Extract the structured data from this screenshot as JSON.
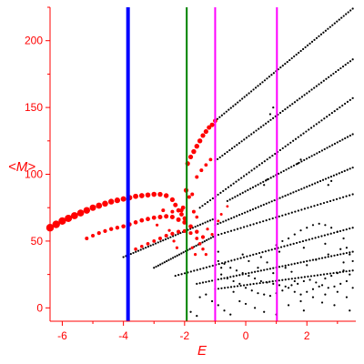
{
  "chart_data": {
    "type": "scatter",
    "title": "",
    "xlabel": "E",
    "ylabel": "<M>",
    "xlim": [
      -6.4,
      3.6
    ],
    "ylim": [
      -10,
      225
    ],
    "xticks": [
      "-6",
      "-4",
      "-2",
      "0",
      "2"
    ],
    "xtick_values": [
      -6,
      -4,
      -2,
      0,
      2
    ],
    "yticks": [
      "0",
      "50",
      "100",
      "150",
      "200"
    ],
    "ytick_values": [
      0,
      50,
      100,
      150,
      200
    ],
    "grid": false,
    "vertical_lines": [
      {
        "x": -3.85,
        "color": "#0000ff"
      },
      {
        "x": -1.93,
        "color": "#008000"
      },
      {
        "x": -1.0,
        "color": "#ff00ff"
      },
      {
        "x": 1.02,
        "color": "#ff00ff"
      }
    ],
    "series": [
      {
        "color": "#ff0000",
        "points": [
          [
            -6.4,
            60,
            4.2
          ],
          [
            -6.2,
            62.5,
            4.2
          ],
          [
            -6.0,
            65,
            4.1
          ],
          [
            -5.8,
            67,
            4.0
          ],
          [
            -5.6,
            69,
            3.9
          ],
          [
            -5.4,
            71,
            3.8
          ],
          [
            -5.2,
            73,
            3.7
          ],
          [
            -5.0,
            75,
            3.5
          ],
          [
            -4.8,
            76.5,
            3.4
          ],
          [
            -4.6,
            78,
            3.3
          ],
          [
            -4.4,
            79.5,
            3.2
          ],
          [
            -4.2,
            80.5,
            3.1
          ],
          [
            -4.0,
            81.5,
            3.0
          ],
          [
            -3.8,
            82.5,
            3.0
          ],
          [
            -3.6,
            83.5,
            2.9
          ],
          [
            -3.4,
            84,
            2.9
          ],
          [
            -3.2,
            84.5,
            2.8
          ],
          [
            -3.0,
            85,
            2.8
          ],
          [
            -2.8,
            85,
            2.7
          ],
          [
            -2.6,
            84,
            2.7
          ],
          [
            -2.4,
            81,
            2.6
          ],
          [
            -2.3,
            77,
            2.5
          ],
          [
            -2.2,
            73,
            2.4
          ],
          [
            -2.1,
            70,
            2.4
          ],
          [
            -2.0,
            67,
            2.3
          ],
          [
            -5.2,
            52,
            2.0
          ],
          [
            -5.0,
            54,
            2.0
          ],
          [
            -4.8,
            56,
            2.1
          ],
          [
            -4.6,
            57.5,
            2.1
          ],
          [
            -4.4,
            59,
            2.2
          ],
          [
            -4.2,
            60,
            2.2
          ],
          [
            -4.0,
            61,
            2.3
          ],
          [
            -3.8,
            62.5,
            2.3
          ],
          [
            -3.6,
            64,
            2.3
          ],
          [
            -3.4,
            65.5,
            2.4
          ],
          [
            -3.2,
            66.5,
            2.4
          ],
          [
            -3.0,
            67.5,
            2.4
          ],
          [
            -2.8,
            68,
            2.5
          ],
          [
            -2.6,
            68.5,
            2.5
          ],
          [
            -2.4,
            68,
            2.5
          ],
          [
            -2.2,
            66,
            2.5
          ],
          [
            -2.0,
            64,
            2.5
          ],
          [
            -1.8,
            61,
            2.3
          ],
          [
            -1.6,
            57,
            2.2
          ],
          [
            -1.4,
            53,
            2.1
          ],
          [
            -3.6,
            44,
            1.8
          ],
          [
            -3.4,
            46,
            1.8
          ],
          [
            -3.2,
            48,
            1.9
          ],
          [
            -3.0,
            50,
            1.9
          ],
          [
            -2.8,
            52,
            2.0
          ],
          [
            -2.6,
            54,
            2.0
          ],
          [
            -2.4,
            55.5,
            2.1
          ],
          [
            -2.2,
            57,
            2.1
          ],
          [
            -2.0,
            57.5,
            2.1
          ],
          [
            -1.8,
            56,
            2.0
          ],
          [
            -1.6,
            52,
            1.9
          ],
          [
            -1.5,
            48,
            1.8
          ],
          [
            -1.4,
            44,
            1.7
          ],
          [
            -1.3,
            40,
            1.6
          ],
          [
            -1.9,
            108,
            2.6
          ],
          [
            -1.8,
            113,
            2.6
          ],
          [
            -1.7,
            117,
            2.7
          ],
          [
            -1.6,
            121,
            2.7
          ],
          [
            -1.5,
            125,
            2.7
          ],
          [
            -1.4,
            129,
            2.6
          ],
          [
            -1.3,
            132,
            2.6
          ],
          [
            -1.2,
            135,
            2.5
          ],
          [
            -1.1,
            137,
            2.5
          ],
          [
            -1.0,
            140,
            2.4
          ],
          [
            -1.95,
            88,
            2.6
          ],
          [
            -1.6,
            98,
            2.0
          ],
          [
            -1.45,
            103,
            2.0
          ],
          [
            -1.3,
            107,
            1.9
          ],
          [
            -1.15,
            111,
            1.9
          ],
          [
            -2.05,
            75,
            2.4
          ],
          [
            -2.1,
            73,
            2.2
          ],
          [
            -2.7,
            73,
            2.0
          ],
          [
            -2.4,
            72,
            2.0
          ],
          [
            -2.9,
            62,
            1.6
          ],
          [
            -2.5,
            58,
            1.6
          ],
          [
            -2.35,
            50,
            1.6
          ],
          [
            -2.25,
            45,
            1.6
          ],
          [
            -1.7,
            72,
            2.0
          ],
          [
            -1.6,
            68,
            1.8
          ],
          [
            -1.25,
            59,
            1.6
          ],
          [
            -1.1,
            55,
            1.6
          ],
          [
            -0.9,
            65,
            1.5
          ],
          [
            -0.8,
            70,
            1.5
          ],
          [
            -0.6,
            76,
            1.4
          ],
          [
            -1.75,
            85,
            2.0
          ],
          [
            -1.85,
            83,
            2.0
          ],
          [
            -1.65,
            40,
            1.6
          ],
          [
            -1.75,
            45,
            1.6
          ]
        ]
      },
      {
        "color": "#000000",
        "lines": [
          {
            "x0": -1.0,
            "y0": 140,
            "x1": 3.5,
            "y1": 224,
            "n": 62
          },
          {
            "x0": -1.0,
            "y0": 110,
            "x1": 3.5,
            "y1": 186,
            "n": 58
          },
          {
            "x0": -1.5,
            "y0": 75,
            "x1": 3.5,
            "y1": 157,
            "n": 60
          },
          {
            "x0": -0.6,
            "y0": 80,
            "x1": 3.5,
            "y1": 130,
            "n": 50
          },
          {
            "x0": -1.0,
            "y0": 62,
            "x1": 3.5,
            "y1": 105,
            "n": 52
          },
          {
            "x0": -4.0,
            "y0": 38,
            "x1": -1.0,
            "y1": 67,
            "n": 38
          },
          {
            "x0": -3.0,
            "y0": 30,
            "x1": -1.0,
            "y1": 54,
            "n": 30
          },
          {
            "x0": -1.0,
            "y0": 54,
            "x1": 3.5,
            "y1": 85,
            "n": 44
          },
          {
            "x0": -2.3,
            "y0": 24,
            "x1": 3.5,
            "y1": 60,
            "n": 58
          },
          {
            "x0": -1.6,
            "y0": 18,
            "x1": 3.5,
            "y1": 42,
            "n": 52
          },
          {
            "x0": -1.0,
            "y0": 14,
            "x1": 3.5,
            "y1": 28,
            "n": 44
          }
        ],
        "points": [
          [
            0.8,
            145
          ],
          [
            0.9,
            150
          ],
          [
            2.0,
            60
          ],
          [
            2.2,
            62
          ],
          [
            2.4,
            63
          ],
          [
            2.6,
            62
          ],
          [
            2.8,
            60
          ],
          [
            3.0,
            57
          ],
          [
            3.2,
            52
          ],
          [
            1.8,
            58
          ],
          [
            1.6,
            55
          ],
          [
            1.4,
            52
          ],
          [
            1.2,
            50
          ],
          [
            1.0,
            47
          ],
          [
            3.3,
            45
          ],
          [
            3.4,
            40
          ],
          [
            3.5,
            35
          ],
          [
            -0.9,
            35
          ],
          [
            -0.7,
            33
          ],
          [
            -0.5,
            30
          ],
          [
            -0.3,
            28
          ],
          [
            -0.1,
            26
          ],
          [
            0.1,
            24
          ],
          [
            0.3,
            22
          ],
          [
            0.5,
            20
          ],
          [
            0.7,
            19
          ],
          [
            0.9,
            18
          ],
          [
            1.1,
            17
          ],
          [
            1.3,
            16
          ],
          [
            1.5,
            17
          ],
          [
            1.7,
            18
          ],
          [
            1.9,
            20
          ],
          [
            2.1,
            21
          ],
          [
            2.3,
            19
          ],
          [
            2.5,
            17
          ],
          [
            2.7,
            15
          ],
          [
            2.9,
            16
          ],
          [
            3.1,
            18
          ],
          [
            3.3,
            20
          ],
          [
            -0.8,
            25
          ],
          [
            -0.6,
            22
          ],
          [
            -0.4,
            20
          ],
          [
            -0.2,
            18
          ],
          [
            0.0,
            15
          ],
          [
            0.2,
            13
          ],
          [
            0.4,
            11
          ],
          [
            0.6,
            10
          ],
          [
            0.8,
            9
          ],
          [
            1.0,
            11
          ],
          [
            1.2,
            13
          ],
          [
            1.4,
            15
          ],
          [
            1.6,
            12
          ],
          [
            1.8,
            10
          ],
          [
            2.0,
            12
          ],
          [
            2.2,
            14
          ],
          [
            2.4,
            16
          ],
          [
            2.6,
            22
          ],
          [
            2.8,
            24
          ],
          [
            3.0,
            26
          ],
          [
            3.2,
            28
          ],
          [
            3.4,
            25
          ],
          [
            -0.2,
            5
          ],
          [
            0.0,
            3
          ],
          [
            0.3,
            0
          ],
          [
            0.6,
            -3
          ],
          [
            1.0,
            -5
          ],
          [
            1.4,
            2
          ],
          [
            1.8,
            5
          ],
          [
            2.2,
            8
          ],
          [
            2.6,
            10
          ],
          [
            3.0,
            12
          ],
          [
            -1.5,
            8
          ],
          [
            -1.3,
            10
          ],
          [
            -1.1,
            5
          ],
          [
            -0.9,
            2
          ],
          [
            -0.7,
            -2
          ],
          [
            -0.5,
            -5
          ],
          [
            -1.8,
            -3
          ],
          [
            -1.6,
            -6
          ],
          [
            -0.9,
            42
          ],
          [
            -0.8,
            30
          ],
          [
            0.5,
            38
          ],
          [
            0.7,
            34
          ],
          [
            1.3,
            30
          ],
          [
            1.5,
            27
          ],
          [
            2.0,
            32
          ],
          [
            2.3,
            36
          ],
          [
            2.7,
            40
          ],
          [
            3.1,
            44
          ],
          [
            3.3,
            8
          ],
          [
            3.5,
            15
          ],
          [
            3.4,
            -2
          ],
          [
            2.9,
            2
          ],
          [
            2.5,
            4
          ],
          [
            1.9,
            -2
          ],
          [
            1.6,
            20
          ],
          [
            0.9,
            26
          ],
          [
            0.1,
            35
          ],
          [
            -0.1,
            40
          ],
          [
            -0.4,
            12
          ],
          [
            0.4,
            30
          ],
          [
            1.1,
            42
          ],
          [
            1.9,
            45
          ],
          [
            2.6,
            48
          ],
          [
            3.2,
            34
          ],
          [
            0.6,
            92
          ],
          [
            0.7,
            96
          ],
          [
            1.7,
            108
          ],
          [
            1.8,
            111
          ],
          [
            2.7,
            92
          ],
          [
            2.8,
            95
          ]
        ]
      }
    ]
  }
}
